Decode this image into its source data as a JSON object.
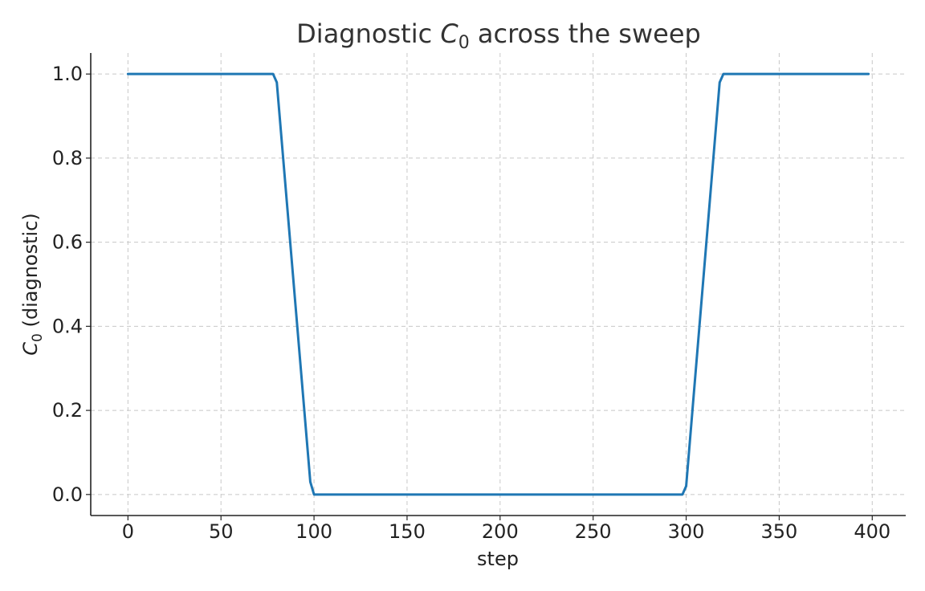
{
  "chart_data": {
    "type": "line",
    "title": {
      "prefix": "Diagnostic ",
      "symbol": "C",
      "subscript": "0",
      "suffix": " across the sweep"
    },
    "xlabel": "step",
    "ylabel": {
      "symbol": "C",
      "subscript": "0",
      "suffix": " (diagnostic)"
    },
    "xlim": [
      -20,
      418
    ],
    "ylim": [
      -0.05,
      1.05
    ],
    "xticks": [
      0,
      50,
      100,
      150,
      200,
      250,
      300,
      350,
      400
    ],
    "xtick_labels": [
      "0",
      "50",
      "100",
      "150",
      "200",
      "250",
      "300",
      "350",
      "400"
    ],
    "yticks": [
      0.0,
      0.2,
      0.4,
      0.6,
      0.8,
      1.0
    ],
    "ytick_labels": [
      "0.0",
      "0.2",
      "0.4",
      "0.6",
      "0.8",
      "1.0"
    ],
    "grid": true,
    "series": [
      {
        "color": "#1f77b4",
        "x": [
          0,
          78,
          80,
          98,
          100,
          298,
          300,
          318,
          320,
          398
        ],
        "y": [
          1.0,
          1.0,
          0.98,
          0.03,
          0.0,
          0.0,
          0.02,
          0.98,
          1.0,
          1.0
        ]
      }
    ]
  }
}
